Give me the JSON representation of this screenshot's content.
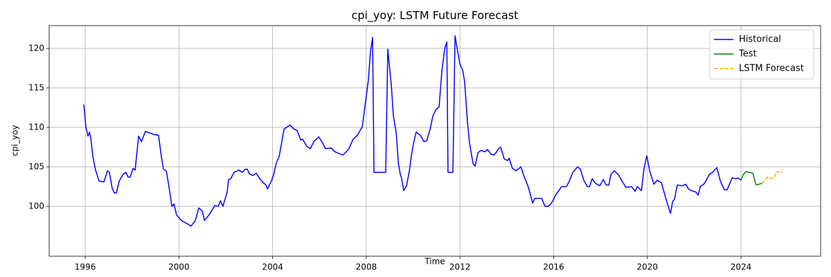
{
  "chart_data": {
    "type": "line",
    "title": "cpi_yoy: LSTM Future Forecast",
    "x_label": "Time",
    "y_label": "cpi_yoy",
    "xlim": [
      1994.46,
      2027.4
    ],
    "ylim": [
      93.68,
      122.89
    ],
    "xticks": [
      1996,
      2000,
      2004,
      2008,
      2012,
      2016,
      2020,
      2024
    ],
    "yticks": [
      100,
      105,
      110,
      115,
      120
    ],
    "grid": true,
    "legend": "upper right",
    "series": [
      {
        "name": "Historical",
        "color": "#0000ff",
        "dashed": false,
        "x": [
          1995.94,
          1996.03,
          1996.12,
          1996.18,
          1996.24,
          1996.33,
          1996.44,
          1996.59,
          1996.8,
          1996.95,
          1997.03,
          1997.15,
          1997.24,
          1997.33,
          1997.45,
          1997.63,
          1997.74,
          1997.83,
          1997.92,
          1998.04,
          1998.13,
          1998.28,
          1998.4,
          1998.57,
          1998.75,
          1998.93,
          1999.13,
          1999.25,
          1999.34,
          1999.46,
          1999.58,
          1999.7,
          1999.79,
          1999.9,
          2000.11,
          2000.35,
          2000.52,
          2000.7,
          2000.85,
          2001.0,
          2001.09,
          2001.23,
          2001.35,
          2001.53,
          2001.68,
          2001.77,
          2001.88,
          2002.06,
          2002.12,
          2002.21,
          2002.36,
          2002.56,
          2002.71,
          2002.83,
          2002.92,
          2003.01,
          2003.16,
          2003.3,
          2003.45,
          2003.6,
          2003.72,
          2003.78,
          2003.95,
          2004.04,
          2004.16,
          2004.28,
          2004.49,
          2004.75,
          2004.9,
          2005.05,
          2005.2,
          2005.28,
          2005.46,
          2005.61,
          2005.76,
          2005.97,
          2006.14,
          2006.26,
          2006.5,
          2006.67,
          2006.82,
          2007.0,
          2007.24,
          2007.44,
          2007.62,
          2007.83,
          2007.95,
          2008.09,
          2008.18,
          2008.27,
          2008.33,
          2008.83,
          2008.92,
          2009.07,
          2009.16,
          2009.28,
          2009.37,
          2009.45,
          2009.51,
          2009.6,
          2009.72,
          2009.84,
          2009.93,
          2010.02,
          2010.13,
          2010.31,
          2010.46,
          2010.58,
          2010.73,
          2010.84,
          2010.96,
          2011.11,
          2011.23,
          2011.35,
          2011.44,
          2011.49,
          2011.7,
          2011.79,
          2011.88,
          2012.0,
          2012.12,
          2012.2,
          2012.32,
          2012.41,
          2012.56,
          2012.65,
          2012.77,
          2012.91,
          2013.06,
          2013.18,
          2013.33,
          2013.45,
          2013.54,
          2013.65,
          2013.74,
          2013.89,
          2014.04,
          2014.1,
          2014.24,
          2014.39,
          2014.48,
          2014.6,
          2014.75,
          2014.9,
          2015.01,
          2015.1,
          2015.19,
          2015.31,
          2015.49,
          2015.63,
          2015.78,
          2015.93,
          2016.08,
          2016.2,
          2016.34,
          2016.55,
          2016.67,
          2016.82,
          2017.02,
          2017.14,
          2017.29,
          2017.44,
          2017.53,
          2017.65,
          2017.79,
          2017.97,
          2018.12,
          2018.24,
          2018.36,
          2018.44,
          2018.59,
          2018.77,
          2018.92,
          2019.09,
          2019.33,
          2019.48,
          2019.57,
          2019.75,
          2019.86,
          2019.98,
          2020.1,
          2020.28,
          2020.42,
          2020.6,
          2020.81,
          2020.99,
          2021.08,
          2021.16,
          2021.28,
          2021.49,
          2021.64,
          2021.76,
          2021.87,
          2022.08,
          2022.17,
          2022.26,
          2022.41,
          2022.52,
          2022.64,
          2022.82,
          2022.97,
          2023.12,
          2023.29,
          2023.41,
          2023.62,
          2023.77,
          2023.88,
          2024.0
        ],
        "values": [
          112.9,
          110,
          108.9,
          109.4,
          108.6,
          106.2,
          104.6,
          103.2,
          103.1,
          104.5,
          104.3,
          102.3,
          101.7,
          101.7,
          103.2,
          104.1,
          104.3,
          103.7,
          103.7,
          104.8,
          104.6,
          108.9,
          108.2,
          109.5,
          109.3,
          109.1,
          109.0,
          106.3,
          104.7,
          104.5,
          102.4,
          100.0,
          100.3,
          98.9,
          98.2,
          97.8,
          97.5,
          98.2,
          99.8,
          99.4,
          98.2,
          98.7,
          99.2,
          100.1,
          100.0,
          100.7,
          100.0,
          101.8,
          103.4,
          103.5,
          104.3,
          104.6,
          104.3,
          104.7,
          104.7,
          104.1,
          103.9,
          104.2,
          103.5,
          103.0,
          102.7,
          102.2,
          103.2,
          104.0,
          105.5,
          106.3,
          109.8,
          110.3,
          109.8,
          109.6,
          108.4,
          108.5,
          107.6,
          107.3,
          108.2,
          108.8,
          108.0,
          107.3,
          107.4,
          106.9,
          106.7,
          106.5,
          107.2,
          108.5,
          109.0,
          110.1,
          112.8,
          116,
          119.6,
          121.4,
          104.3,
          104.3,
          119.9,
          115.3,
          111.4,
          109.3,
          105.5,
          104.1,
          103.5,
          102.0,
          102.6,
          104.5,
          106.5,
          108.0,
          109.4,
          109.0,
          108.2,
          108.3,
          109.8,
          111.4,
          112.2,
          112.6,
          117.2,
          120,
          120.8,
          104.3,
          104.3,
          121.6,
          120.0,
          118.0,
          117.2,
          115.8,
          110.7,
          108.0,
          105.4,
          105.1,
          106.8,
          107.1,
          106.9,
          107.2,
          106.6,
          106.5,
          106.8,
          107.3,
          107.5,
          106.0,
          105.8,
          106.1,
          104.8,
          104.5,
          104.7,
          105.0,
          103.7,
          102.6,
          101.5,
          100.4,
          101.0,
          101.0,
          101.0,
          100.0,
          100.0,
          100.5,
          101.4,
          101.9,
          102.5,
          102.5,
          103.2,
          104.3,
          105.0,
          104.7,
          103.3,
          102.5,
          102.5,
          103.5,
          102.9,
          102.6,
          103.4,
          102.7,
          102.7,
          104.0,
          104.5,
          104.0,
          103.2,
          102.4,
          102.5,
          101.9,
          102.5,
          102.0,
          104.8,
          106.4,
          104.5,
          102.8,
          103.3,
          103.0,
          100.8,
          99.1,
          100.6,
          100.9,
          102.7,
          102.6,
          102.8,
          102.2,
          102.0,
          101.8,
          101.4,
          102.5,
          102.8,
          103.3,
          104.0,
          104.4,
          104.9,
          103.2,
          102.1,
          102.1,
          103.6,
          103.5,
          103.6,
          103.3
        ]
      },
      {
        "name": "Test",
        "color": "#008000",
        "dashed": false,
        "x": [
          2024.0,
          2024.09,
          2024.21,
          2024.36,
          2024.51,
          2024.59,
          2024.65,
          2024.77,
          2024.89
        ],
        "values": [
          103.3,
          104.0,
          104.4,
          104.3,
          104.2,
          103.2,
          102.7,
          102.8,
          102.9
        ]
      },
      {
        "name": "LSTM Forecast",
        "color": "#ffa500",
        "dashed": true,
        "x": [
          2024.89,
          2025.01,
          2025.13,
          2025.27,
          2025.42,
          2025.51,
          2025.63,
          2025.78
        ],
        "values": [
          102.9,
          103.2,
          103.7,
          103.5,
          103.6,
          104.4,
          104.3,
          104.3
        ]
      }
    ]
  }
}
